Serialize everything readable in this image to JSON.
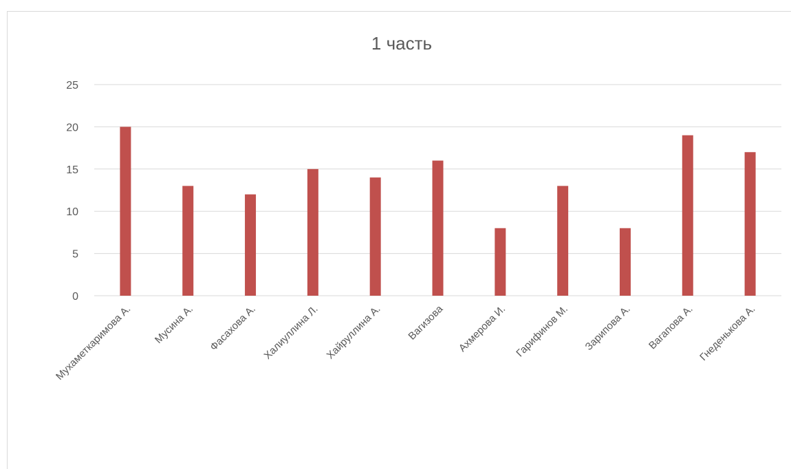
{
  "chart_data": {
    "type": "bar",
    "title": "1 часть",
    "xlabel": "",
    "ylabel": "",
    "categories": [
      "Мухаметкаримова А.",
      "Мусина А.",
      "Фасахова А.",
      "Халиуллина Л.",
      "Хайруллина А.",
      "Вагизова",
      "Ахмерова И.",
      "Гарифинов М.",
      "Зарипова А.",
      "Вагапова А.",
      "Гнеденькова А."
    ],
    "values": [
      20,
      13,
      12,
      15,
      14,
      16,
      8,
      13,
      8,
      19,
      17
    ],
    "ylim": [
      0,
      25
    ],
    "yticks": [
      "0",
      "5",
      "10",
      "15",
      "20",
      "25"
    ],
    "grid": true,
    "legend": "none",
    "bar_color": "#c0504d"
  }
}
